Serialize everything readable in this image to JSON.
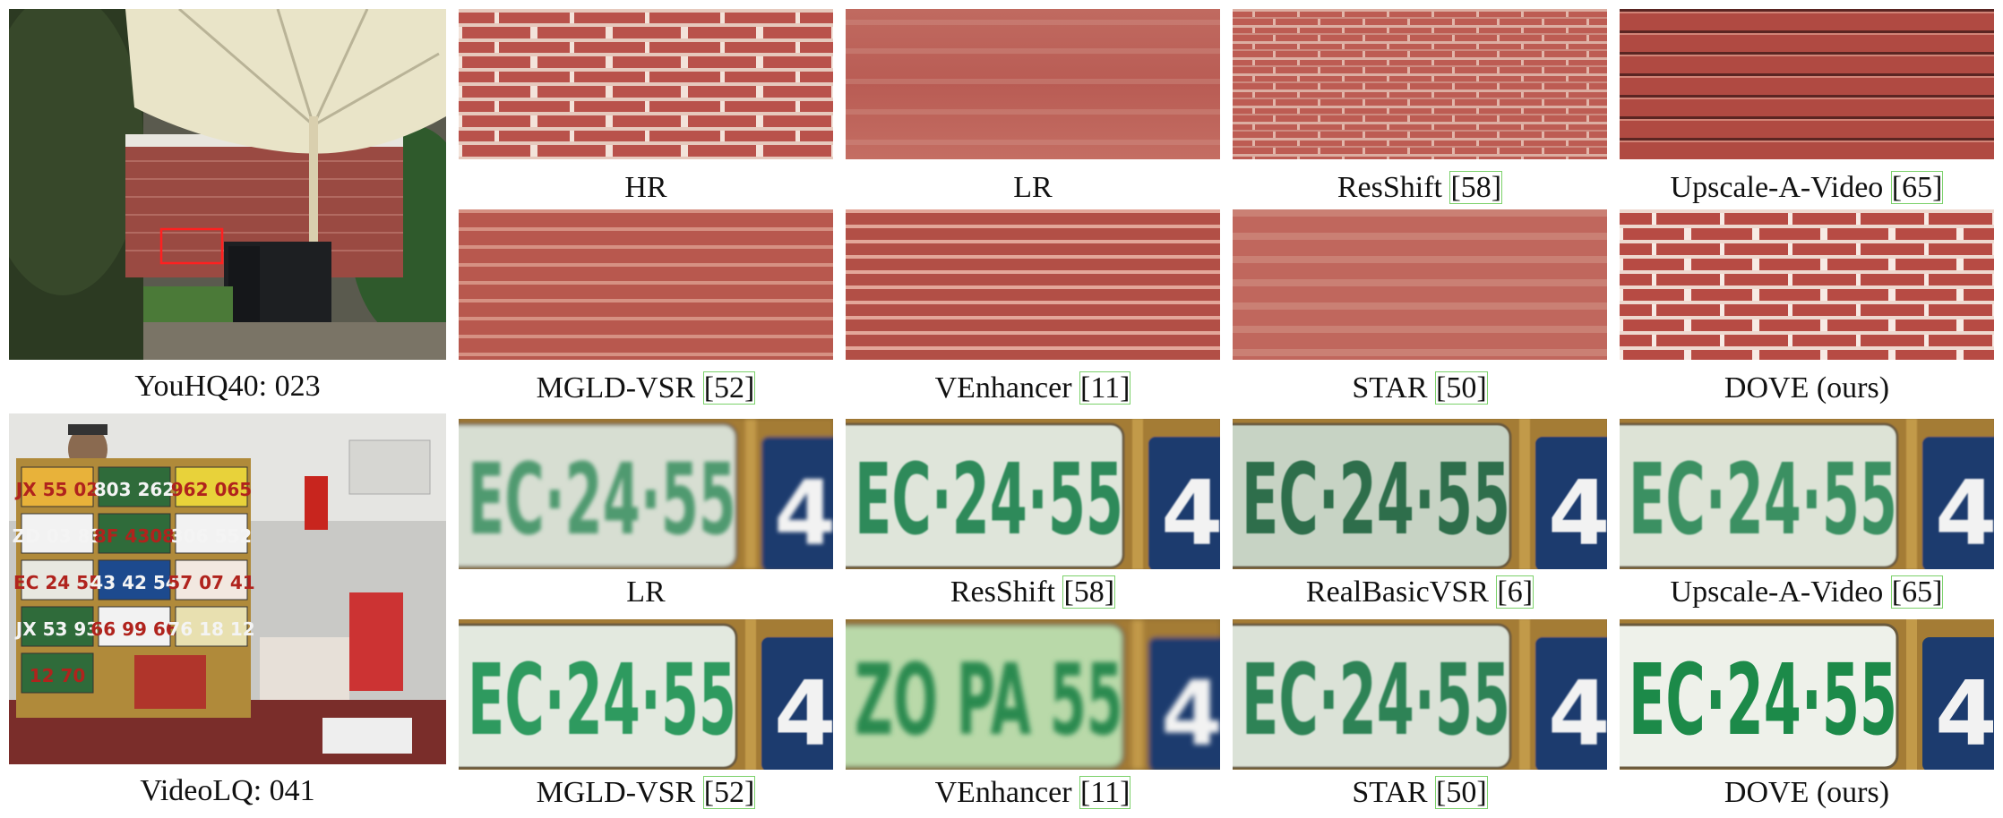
{
  "rows": [
    {
      "id": "youhq40",
      "scene_caption": "YouHQ40: 023",
      "captions": [
        {
          "label": "HR",
          "ref": ""
        },
        {
          "label": "LR",
          "ref": ""
        },
        {
          "label": "ResShift ",
          "ref": "[58]"
        },
        {
          "label": "Upscale-A-Video ",
          "ref": "[65]"
        },
        {
          "label": "MGLD-VSR ",
          "ref": "[52]"
        },
        {
          "label": "VEnhancer ",
          "ref": "[11]"
        },
        {
          "label": "STAR ",
          "ref": "[50]"
        },
        {
          "label": "DOVE (ours)",
          "ref": ""
        }
      ]
    },
    {
      "id": "videolq",
      "scene_caption": "VideoLQ: 041",
      "captions": [
        {
          "label": "LR",
          "ref": ""
        },
        {
          "label": "ResShift ",
          "ref": "[58]"
        },
        {
          "label": "RealBasicVSR ",
          "ref": "[6]"
        },
        {
          "label": "Upscale-A-Video ",
          "ref": "[65]"
        },
        {
          "label": "MGLD-VSR ",
          "ref": "[52]"
        },
        {
          "label": "VEnhancer ",
          "ref": "[11]"
        },
        {
          "label": "STAR ",
          "ref": "[50]"
        },
        {
          "label": "DOVE (ours)",
          "ref": ""
        }
      ],
      "plate_texts": {
        "main": "EC·24·55",
        "side": "4",
        "venhancer": "ZO PA 55"
      }
    }
  ],
  "scene2_plates": [
    "JX 55 02",
    "803 262",
    "962 065",
    "ZD 03 83",
    "8F 4308",
    "306 552",
    "EC 24 55",
    "43 42 54",
    "57 07 41",
    "JX 53 93",
    "66 99 66",
    "76 18 12",
    "12 70"
  ],
  "colors": {
    "brick": "#b9524b",
    "mortar": "#e9d3c8",
    "highlight_box": "#ff2020",
    "plate_green": "#2e8a55",
    "plate_bg": "#e6ece4",
    "ref_box": "#7bd16a"
  }
}
